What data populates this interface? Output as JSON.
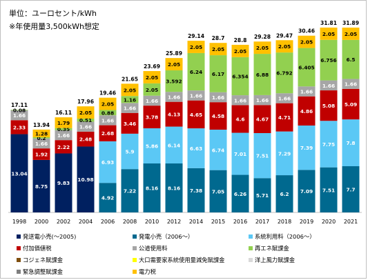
{
  "header": {
    "unit_label": "単位：ユーロセント/kWh",
    "note": "※年使用量3,500kWh想定"
  },
  "chart_data": {
    "type": "bar",
    "stacked": true,
    "title": "",
    "xlabel": "",
    "ylabel": "",
    "ylim": [
      0,
      32
    ],
    "grid": false,
    "legend_position": "bottom",
    "categories": [
      "1998",
      "2000",
      "2002",
      "2004",
      "2006",
      "2008",
      "2010",
      "2012",
      "2014",
      "2015",
      "2016",
      "2017",
      "2018",
      "2019",
      "2020",
      "2021"
    ],
    "totals": [
      17.11,
      13.94,
      16.11,
      17.96,
      19.46,
      21.65,
      23.69,
      25.89,
      29.14,
      28.7,
      28.8,
      29.28,
      29.47,
      30.46,
      31.81,
      31.89
    ],
    "series": [
      {
        "name": "発送電小売(～2005)",
        "color": "#002060",
        "label_color": "#ffffff",
        "values": [
          13.04,
          8.75,
          9.83,
          10.98,
          null,
          null,
          null,
          null,
          null,
          null,
          null,
          null,
          null,
          null,
          null,
          null
        ]
      },
      {
        "name": "発電小売（2006～）",
        "color": "#00698f",
        "label_color": "#ffffff",
        "values": [
          null,
          null,
          null,
          null,
          4.92,
          7.22,
          8.16,
          8.16,
          7.38,
          7.05,
          6.26,
          5.71,
          6.2,
          7.09,
          7.51,
          7.7
        ]
      },
      {
        "name": "系統利用料（2006～）",
        "color": "#5bc8f5",
        "label_color": "#ffffff",
        "values": [
          null,
          null,
          null,
          null,
          6.93,
          5.9,
          5.86,
          6.14,
          6.63,
          6.74,
          7.01,
          7.51,
          7.29,
          7.39,
          7.75,
          7.8
        ]
      },
      {
        "name": "付加価値税",
        "color": "#c00000",
        "label_color": "#ffffff",
        "values": [
          2.33,
          1.92,
          2.22,
          2.48,
          2.68,
          3.46,
          3.78,
          4.13,
          4.65,
          4.58,
          4.6,
          4.67,
          4.71,
          4.86,
          5.08,
          5.09
        ]
      },
      {
        "name": "公道使用料",
        "color": "#a6a6a6",
        "label_color": "#ffffff",
        "values": [
          1.66,
          1.66,
          1.66,
          1.66,
          1.66,
          1.66,
          1.66,
          1.66,
          1.66,
          1.66,
          1.66,
          1.66,
          1.66,
          1.66,
          1.66,
          1.66
        ]
      },
      {
        "name": "再エネ賦課金",
        "color": "#92d050",
        "label_color": "#000000",
        "values": [
          0.08,
          0.2,
          0.35,
          0.51,
          0.88,
          1.16,
          2.05,
          3.592,
          6.24,
          6.17,
          6.354,
          6.88,
          6.792,
          6.405,
          6.756,
          6.5
        ]
      },
      {
        "name": "コジェネ賦課金",
        "color": "#7f4f0f",
        "label_color": "#000000",
        "values": [
          null,
          null,
          null,
          null,
          null,
          null,
          null,
          null,
          null,
          null,
          null,
          null,
          null,
          null,
          null,
          null
        ]
      },
      {
        "name": "大口需要家系統使用量減免賦課金",
        "color": "#ffff00",
        "label_color": "#000000",
        "values": [
          null,
          null,
          null,
          null,
          null,
          null,
          null,
          null,
          null,
          null,
          null,
          null,
          null,
          null,
          null,
          null
        ]
      },
      {
        "name": "洋上風力賦課金",
        "color": "#d9d9d9",
        "label_color": "#000000",
        "values": [
          null,
          null,
          null,
          null,
          null,
          null,
          null,
          null,
          null,
          null,
          null,
          null,
          null,
          null,
          null,
          null
        ]
      },
      {
        "name": "緊急調整賦課金",
        "color": "#7f7f7f",
        "label_color": "#000000",
        "values": [
          null,
          null,
          null,
          null,
          null,
          null,
          null,
          null,
          null,
          null,
          null,
          null,
          null,
          null,
          null,
          null
        ]
      },
      {
        "name": "電力税",
        "color": "#ffc000",
        "label_color": "#000000",
        "values": [
          null,
          1.28,
          1.79,
          2.05,
          2.05,
          2.05,
          2.05,
          2.05,
          2.05,
          2.05,
          2.05,
          2.05,
          2.05,
          2.05,
          2.05,
          2.05
        ]
      }
    ]
  }
}
